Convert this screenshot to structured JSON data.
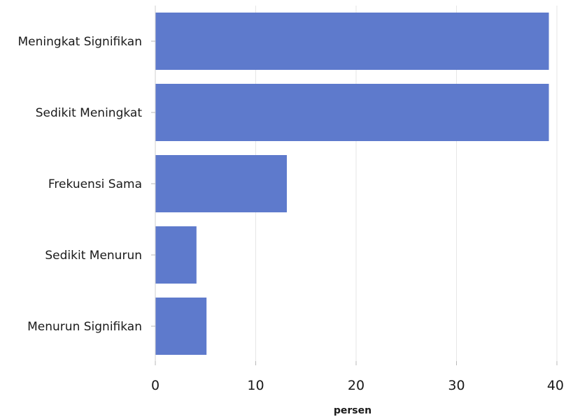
{
  "chart_data": {
    "type": "bar",
    "orientation": "horizontal",
    "categories": [
      "Meningkat Signifikan",
      "Sedikit Meningkat",
      "Frekuensi Sama",
      "Sedikit Menurun",
      "Menurun Signifikan"
    ],
    "values": [
      39.2,
      39.2,
      13.1,
      4.1,
      5.1
    ],
    "xlabel": "persen",
    "ylabel": "",
    "xlim": [
      0,
      40
    ],
    "x_ticks": [
      "0",
      "10",
      "20",
      "30",
      "40"
    ],
    "grid": true,
    "bar_color": "#5e7acc"
  }
}
